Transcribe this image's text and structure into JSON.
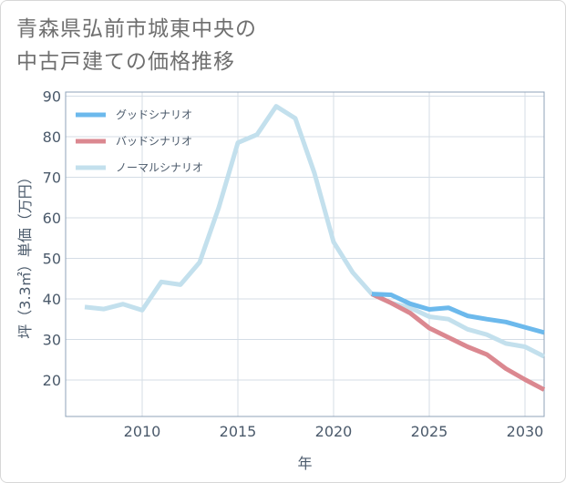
{
  "title_lines": [
    "青森県弘前市城東中央の",
    "中古戸建ての価格推移"
  ],
  "chart_data": {
    "type": "line",
    "title": "青森県弘前市城東中央の中古戸建ての価格推移",
    "xlabel": "年",
    "ylabel": "坪（3.3㎡）単価（万円）",
    "xlim": [
      2006,
      2031
    ],
    "ylim": [
      11,
      91
    ],
    "xticks": [
      2010,
      2015,
      2020,
      2025,
      2030
    ],
    "yticks": [
      20,
      30,
      40,
      50,
      60,
      70,
      80,
      90
    ],
    "grid": true,
    "legend_position": "top-left",
    "series": [
      {
        "name": "グッドシナリオ",
        "color": "#6cb9ec",
        "x": [
          2022,
          2023,
          2024,
          2025,
          2026,
          2027,
          2028,
          2029,
          2030,
          2031
        ],
        "values": [
          41.2,
          41.0,
          38.8,
          37.4,
          37.8,
          35.8,
          35.0,
          34.3,
          33.0,
          31.7
        ]
      },
      {
        "name": "バッドシナリオ",
        "color": "#db8890",
        "x": [
          2022,
          2023,
          2024,
          2025,
          2026,
          2027,
          2028,
          2029,
          2030,
          2031
        ],
        "values": [
          41.2,
          39.0,
          36.5,
          32.8,
          30.5,
          28.2,
          26.3,
          22.8,
          20.1,
          17.6
        ]
      },
      {
        "name": "ノーマルシナリオ",
        "color": "#c3e0ed",
        "x": [
          2007,
          2008,
          2009,
          2010,
          2011,
          2012,
          2013,
          2014,
          2015,
          2016,
          2017,
          2018,
          2019,
          2020,
          2021,
          2022,
          2023,
          2024,
          2025,
          2026,
          2027,
          2028,
          2029,
          2030,
          2031
        ],
        "values": [
          38.0,
          37.5,
          38.7,
          37.2,
          44.2,
          43.5,
          49.0,
          62.5,
          78.5,
          80.5,
          87.5,
          84.5,
          71.0,
          54.0,
          46.5,
          41.2,
          39.0,
          37.8,
          35.6,
          35.0,
          32.5,
          31.2,
          29.0,
          28.2,
          25.8
        ]
      }
    ]
  }
}
